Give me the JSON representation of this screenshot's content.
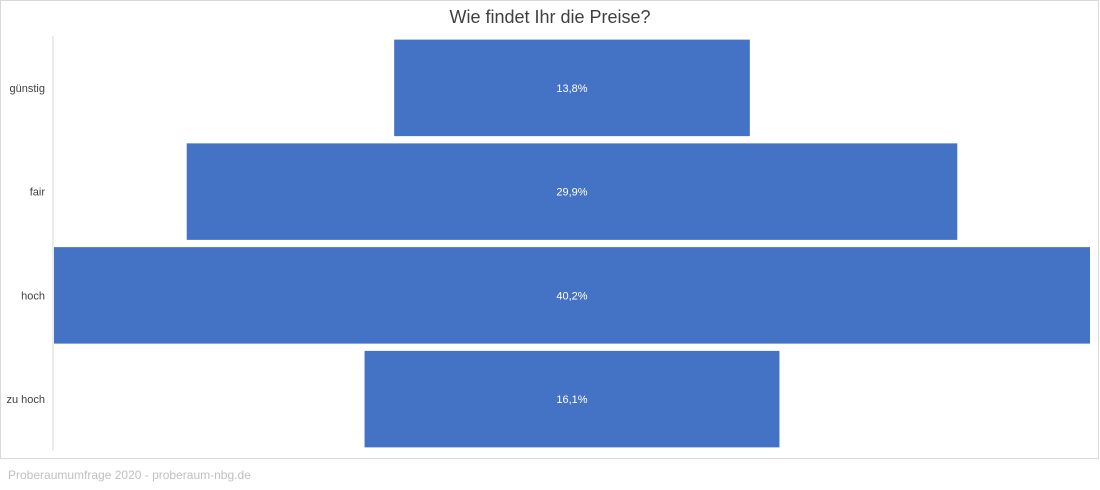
{
  "chart_data": {
    "type": "bar",
    "orientation": "horizontal-centered",
    "title": "Wie findet Ihr die Preise?",
    "categories": [
      "günstig",
      "fair",
      "hoch",
      "zu hoch"
    ],
    "values": [
      13.8,
      29.9,
      40.2,
      16.1
    ],
    "data_labels": [
      "13,8%",
      "29,9%",
      "40,2%",
      "16,1%"
    ],
    "unit": "%",
    "xlim": [
      0,
      40.2
    ],
    "grid": false,
    "legend": "none",
    "bar_color": "#4472c4"
  },
  "footer": {
    "source": "Proberaumumfrage 2020 - proberaum-nbg.de"
  }
}
